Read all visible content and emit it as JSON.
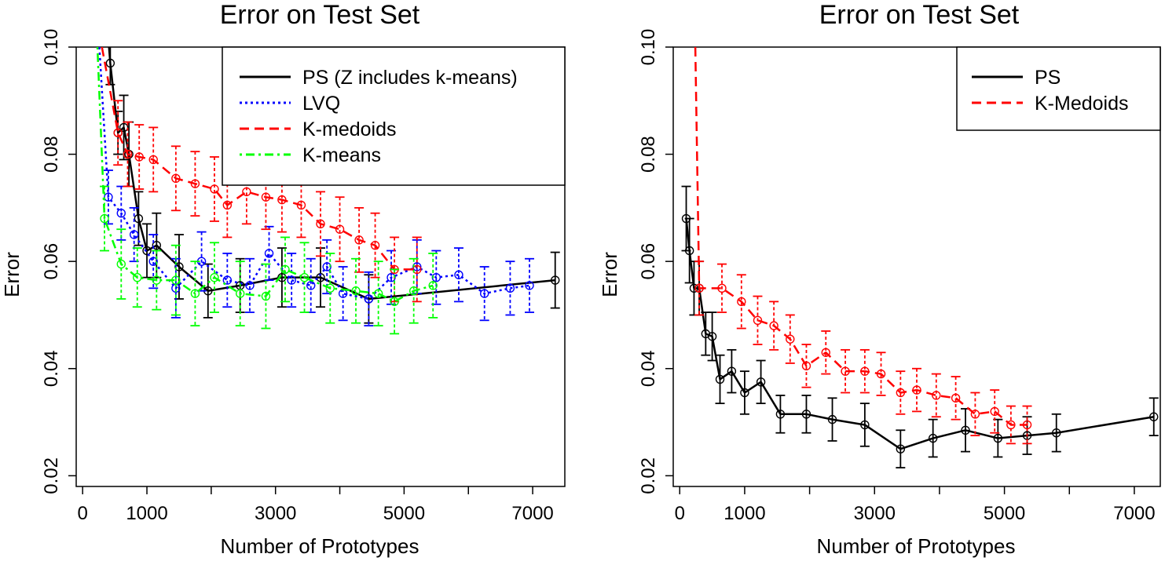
{
  "chart_data": [
    {
      "type": "line",
      "title": "Error on Test Set",
      "xlabel": "Number of Prototypes",
      "ylabel": "Error",
      "xlim": [
        -100,
        7500
      ],
      "ylim": [
        0.018,
        0.1
      ],
      "xticks": [
        {
          "value": 0,
          "label": "0"
        },
        {
          "value": 1000,
          "label": "1000"
        },
        {
          "value": 2000,
          "label": ""
        },
        {
          "value": 3000,
          "label": "3000"
        },
        {
          "value": 4000,
          "label": ""
        },
        {
          "value": 5000,
          "label": "5000"
        },
        {
          "value": 6000,
          "label": ""
        },
        {
          "value": 7000,
          "label": "7000"
        }
      ],
      "yticks": [
        {
          "value": 0.02,
          "label": "0.02"
        },
        {
          "value": 0.04,
          "label": "0.04"
        },
        {
          "value": 0.06,
          "label": "0.06"
        },
        {
          "value": 0.08,
          "label": "0.08"
        },
        {
          "value": 0.1,
          "label": "0.10"
        }
      ],
      "grid": false,
      "legend_position": "top-right",
      "series": [
        {
          "name": "PS (Z includes k-means)",
          "color": "#000000",
          "dash": "solid",
          "x": [
            430,
            550,
            640,
            720,
            870,
            1000,
            1150,
            1500,
            1950,
            2450,
            3100,
            3700,
            4450,
            7350
          ],
          "y": [
            0.097,
            0.084,
            0.085,
            0.08,
            0.068,
            0.062,
            0.063,
            0.059,
            0.0545,
            0.0555,
            0.057,
            0.057,
            0.053,
            0.0565
          ],
          "err": [
            0.004,
            0.004,
            0.006,
            0.006,
            0.005,
            0.005,
            0.006,
            0.006,
            0.005,
            0.005,
            0.0055,
            0.0055,
            0.0045,
            0.0052
          ],
          "leading_curve": {
            "x": [
              410,
              430
            ],
            "y": [
              0.1,
              0.097
            ]
          }
        },
        {
          "name": "LVQ",
          "color": "#0000ff",
          "dash": "dotted",
          "x": [
            400,
            600,
            800,
            1100,
            1450,
            1850,
            2250,
            2600,
            2900,
            3250,
            3550,
            3800,
            4050,
            4450,
            4800,
            5200,
            5500,
            5850,
            6250,
            6650,
            6950
          ],
          "y": [
            0.072,
            0.069,
            0.065,
            0.06,
            0.055,
            0.06,
            0.0565,
            0.0555,
            0.0615,
            0.0565,
            0.0555,
            0.059,
            0.054,
            0.053,
            0.057,
            0.059,
            0.057,
            0.0575,
            0.054,
            0.055,
            0.0555
          ],
          "err": [
            0.005,
            0.005,
            0.005,
            0.005,
            0.0055,
            0.0055,
            0.005,
            0.005,
            0.005,
            0.005,
            0.005,
            0.005,
            0.005,
            0.005,
            0.005,
            0.005,
            0.005,
            0.005,
            0.005,
            0.005,
            0.005
          ],
          "leading_curve": {
            "x": [
              260,
              400
            ],
            "y": [
              0.1,
              0.072
            ]
          }
        },
        {
          "name": "K-medoids",
          "color": "#ff0000",
          "dash": "dashed",
          "x": [
            550,
            700,
            880,
            1100,
            1450,
            1750,
            2050,
            2250,
            2550,
            2850,
            3100,
            3400,
            3700,
            4000,
            4300,
            4550,
            4850,
            5200
          ],
          "y": [
            0.084,
            0.08,
            0.0795,
            0.079,
            0.0755,
            0.0745,
            0.0735,
            0.0705,
            0.073,
            0.072,
            0.0715,
            0.0705,
            0.067,
            0.066,
            0.064,
            0.063,
            0.0585,
            0.0585
          ],
          "err": [
            0.006,
            0.006,
            0.006,
            0.006,
            0.006,
            0.006,
            0.006,
            0.006,
            0.006,
            0.006,
            0.006,
            0.006,
            0.006,
            0.006,
            0.006,
            0.006,
            0.006,
            0.006
          ],
          "leading_curve": {
            "x": [
              300,
              550
            ],
            "y": [
              0.1,
              0.084
            ]
          }
        },
        {
          "name": "K-means",
          "color": "#00ff00",
          "dash": "dotdash",
          "x": [
            340,
            600,
            850,
            1150,
            1450,
            1750,
            2050,
            2450,
            2850,
            3150,
            3450,
            3850,
            4250,
            4600,
            4850,
            5150,
            5450
          ],
          "y": [
            0.068,
            0.0595,
            0.057,
            0.0565,
            0.0565,
            0.054,
            0.057,
            0.054,
            0.0535,
            0.0585,
            0.057,
            0.055,
            0.0545,
            0.054,
            0.0525,
            0.0545,
            0.0555
          ],
          "err": [
            0.006,
            0.0065,
            0.0055,
            0.0055,
            0.0065,
            0.006,
            0.0065,
            0.006,
            0.006,
            0.006,
            0.0065,
            0.0065,
            0.006,
            0.006,
            0.006,
            0.006,
            0.006
          ],
          "leading_curve": {
            "x": [
              230,
              340
            ],
            "y": [
              0.1,
              0.068
            ]
          }
        }
      ]
    },
    {
      "type": "line",
      "title": "Error on Test Set",
      "xlabel": "Number of Prototypes",
      "ylabel": "Error",
      "xlim": [
        -100,
        7400
      ],
      "ylim": [
        0.018,
        0.1
      ],
      "xticks": [
        {
          "value": 0,
          "label": "0"
        },
        {
          "value": 1000,
          "label": "1000"
        },
        {
          "value": 2000,
          "label": ""
        },
        {
          "value": 3000,
          "label": "3000"
        },
        {
          "value": 4000,
          "label": ""
        },
        {
          "value": 5000,
          "label": "5000"
        },
        {
          "value": 6000,
          "label": ""
        },
        {
          "value": 7000,
          "label": "7000"
        }
      ],
      "yticks": [
        {
          "value": 0.02,
          "label": "0.02"
        },
        {
          "value": 0.04,
          "label": "0.04"
        },
        {
          "value": 0.06,
          "label": "0.06"
        },
        {
          "value": 0.08,
          "label": "0.08"
        },
        {
          "value": 0.1,
          "label": "0.10"
        }
      ],
      "grid": false,
      "legend_position": "top-right",
      "series": [
        {
          "name": "PS",
          "color": "#000000",
          "dash": "solid",
          "x": [
            100,
            150,
            220,
            300,
            400,
            500,
            620,
            800,
            1000,
            1250,
            1550,
            1950,
            2350,
            2850,
            3400,
            3900,
            4400,
            4900,
            5350,
            5800,
            7300
          ],
          "y": [
            0.068,
            0.062,
            0.055,
            0.055,
            0.0465,
            0.046,
            0.038,
            0.0395,
            0.0355,
            0.0375,
            0.0315,
            0.0315,
            0.0305,
            0.0295,
            0.025,
            0.027,
            0.0285,
            0.027,
            0.0275,
            0.028,
            0.031
          ],
          "err": [
            0.006,
            0.006,
            0.005,
            0.005,
            0.004,
            0.0045,
            0.0045,
            0.004,
            0.004,
            0.004,
            0.0035,
            0.0035,
            0.004,
            0.004,
            0.0035,
            0.0035,
            0.004,
            0.0035,
            0.0035,
            0.0035,
            0.0035
          ]
        },
        {
          "name": "K-Medoids",
          "color": "#ff0000",
          "dash": "dashed",
          "x": [
            300,
            650,
            950,
            1200,
            1450,
            1700,
            1950,
            2250,
            2550,
            2850,
            3100,
            3400,
            3650,
            3950,
            4250,
            4550,
            4850,
            5100,
            5350
          ],
          "y": [
            0.055,
            0.055,
            0.0525,
            0.049,
            0.048,
            0.0455,
            0.0405,
            0.043,
            0.0395,
            0.0395,
            0.039,
            0.0355,
            0.036,
            0.035,
            0.0345,
            0.0315,
            0.032,
            0.0295,
            0.0295
          ],
          "err": [
            0.005,
            0.0045,
            0.005,
            0.0045,
            0.0045,
            0.0045,
            0.004,
            0.004,
            0.004,
            0.004,
            0.004,
            0.004,
            0.004,
            0.004,
            0.004,
            0.004,
            0.004,
            0.0035,
            0.0035
          ],
          "leading_curve": {
            "x": [
              240,
              300
            ],
            "y": [
              0.1,
              0.055
            ]
          }
        }
      ]
    }
  ]
}
